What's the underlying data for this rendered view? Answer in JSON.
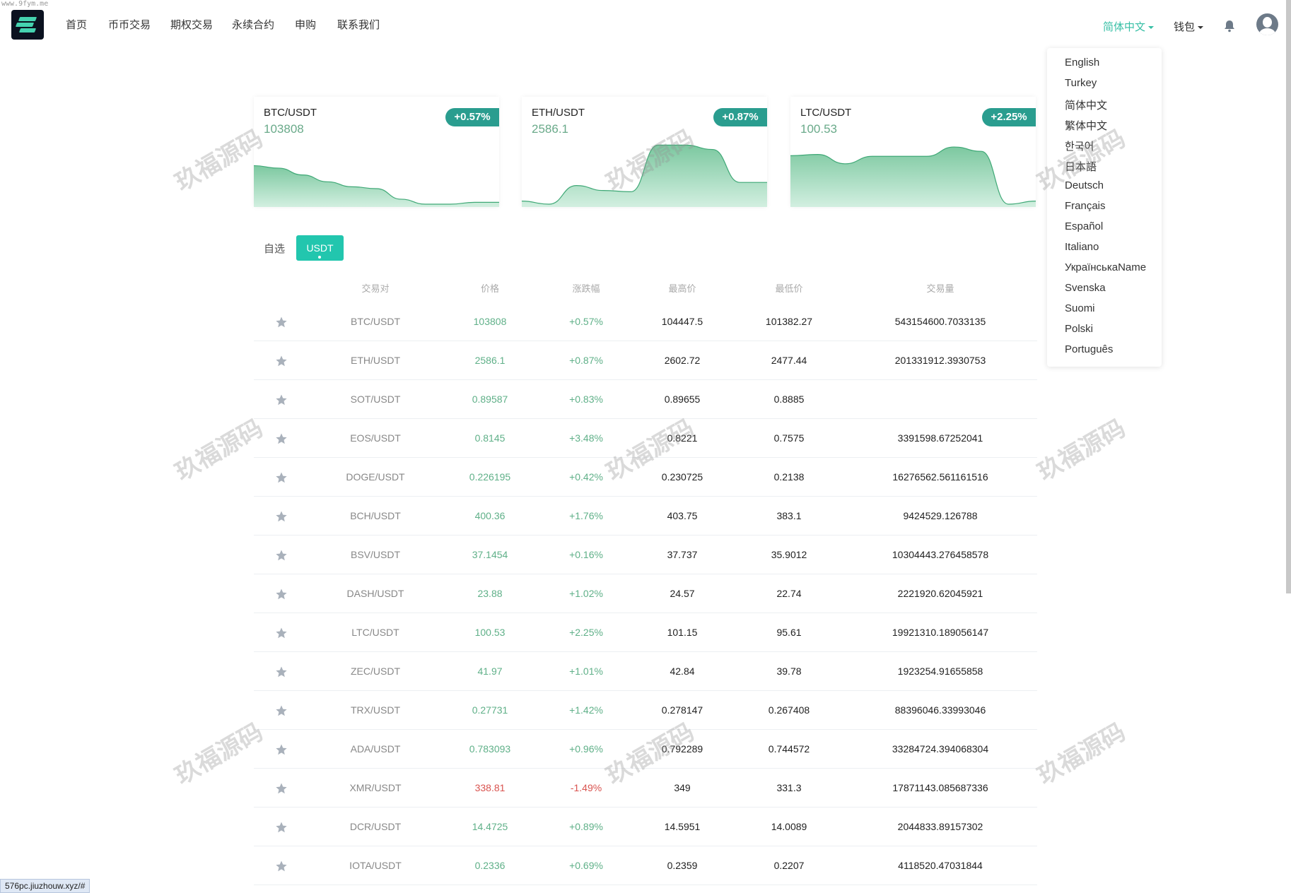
{
  "watermark_top": "www.9fym.me",
  "watermark": "玖福源码",
  "nav": {
    "items": [
      "首页",
      "币币交易",
      "期权交易",
      "永续合约",
      "申购",
      "联系我们"
    ],
    "language": "简体中文",
    "wallet": "钱包"
  },
  "language_menu": [
    "English",
    "Turkey",
    "简体中文",
    "繁体中文",
    "한국어",
    "日本語",
    "Deutsch",
    "Français",
    "Español",
    "Italiano",
    "УкраїнськаName",
    "Svenska",
    "Suomi",
    "Polski",
    "Português"
  ],
  "cards": [
    {
      "pair": "BTC/USDT",
      "price": "103808",
      "change": "+0.57%",
      "trend": [
        0.62,
        0.58,
        0.47,
        0.36,
        0.28,
        0.25,
        0.08,
        0.0,
        0.0,
        0.03,
        0.03
      ]
    },
    {
      "pair": "ETH/USDT",
      "price": "2586.1",
      "change": "+0.87%",
      "trend": [
        0.05,
        0.0,
        0.3,
        0.22,
        0.2,
        0.95,
        0.95,
        0.88,
        0.35,
        0.35
      ]
    },
    {
      "pair": "LTC/USDT",
      "price": "100.53",
      "change": "+2.25%",
      "trend": [
        0.78,
        0.8,
        0.65,
        0.77,
        0.77,
        0.77,
        0.92,
        0.85,
        0.0,
        0.05
      ]
    }
  ],
  "tabs": {
    "favorites": "自选",
    "usdt": "USDT"
  },
  "table": {
    "headers": [
      "交易对",
      "价格",
      "涨跌幅",
      "最高价",
      "最低价",
      "交易量"
    ],
    "rows": [
      {
        "pair": "BTC/USDT",
        "price": "103808",
        "change": "+0.57%",
        "high": "104447.5",
        "low": "101382.27",
        "vol": "543154600.7033135",
        "up": true
      },
      {
        "pair": "ETH/USDT",
        "price": "2586.1",
        "change": "+0.87%",
        "high": "2602.72",
        "low": "2477.44",
        "vol": "201331912.3930753",
        "up": true
      },
      {
        "pair": "SOT/USDT",
        "price": "0.89587",
        "change": "+0.83%",
        "high": "0.89655",
        "low": "0.8885",
        "vol": "",
        "up": true
      },
      {
        "pair": "EOS/USDT",
        "price": "0.8145",
        "change": "+3.48%",
        "high": "0.8221",
        "low": "0.7575",
        "vol": "3391598.67252041",
        "up": true
      },
      {
        "pair": "DOGE/USDT",
        "price": "0.226195",
        "change": "+0.42%",
        "high": "0.230725",
        "low": "0.2138",
        "vol": "16276562.561161516",
        "up": true
      },
      {
        "pair": "BCH/USDT",
        "price": "400.36",
        "change": "+1.76%",
        "high": "403.75",
        "low": "383.1",
        "vol": "9424529.126788",
        "up": true
      },
      {
        "pair": "BSV/USDT",
        "price": "37.1454",
        "change": "+0.16%",
        "high": "37.737",
        "low": "35.9012",
        "vol": "10304443.276458578",
        "up": true
      },
      {
        "pair": "DASH/USDT",
        "price": "23.88",
        "change": "+1.02%",
        "high": "24.57",
        "low": "22.74",
        "vol": "2221920.62045921",
        "up": true
      },
      {
        "pair": "LTC/USDT",
        "price": "100.53",
        "change": "+2.25%",
        "high": "101.15",
        "low": "95.61",
        "vol": "19921310.189056147",
        "up": true
      },
      {
        "pair": "ZEC/USDT",
        "price": "41.97",
        "change": "+1.01%",
        "high": "42.84",
        "low": "39.78",
        "vol": "1923254.91655858",
        "up": true
      },
      {
        "pair": "TRX/USDT",
        "price": "0.27731",
        "change": "+1.42%",
        "high": "0.278147",
        "low": "0.267408",
        "vol": "88396046.33993046",
        "up": true
      },
      {
        "pair": "ADA/USDT",
        "price": "0.783093",
        "change": "+0.96%",
        "high": "0.792289",
        "low": "0.744572",
        "vol": "33284724.394068304",
        "up": true
      },
      {
        "pair": "XMR/USDT",
        "price": "338.81",
        "change": "-1.49%",
        "high": "349",
        "low": "331.3",
        "vol": "17871143.085687336",
        "up": false
      },
      {
        "pair": "DCR/USDT",
        "price": "14.4725",
        "change": "+0.89%",
        "high": "14.5951",
        "low": "14.0089",
        "vol": "2044833.89157302",
        "up": true
      },
      {
        "pair": "IOTA/USDT",
        "price": "0.2336",
        "change": "+0.69%",
        "high": "0.2359",
        "low": "0.2207",
        "vol": "4118520.47031844",
        "up": true
      }
    ]
  },
  "status_url": "576pc.jiuzhouw.xyz/#",
  "colors": {
    "up": "#5fb088",
    "down": "#d9534f",
    "accent": "#22c6ae",
    "badge": "#2a9d8f",
    "selected_lang": "#36bfa5"
  }
}
